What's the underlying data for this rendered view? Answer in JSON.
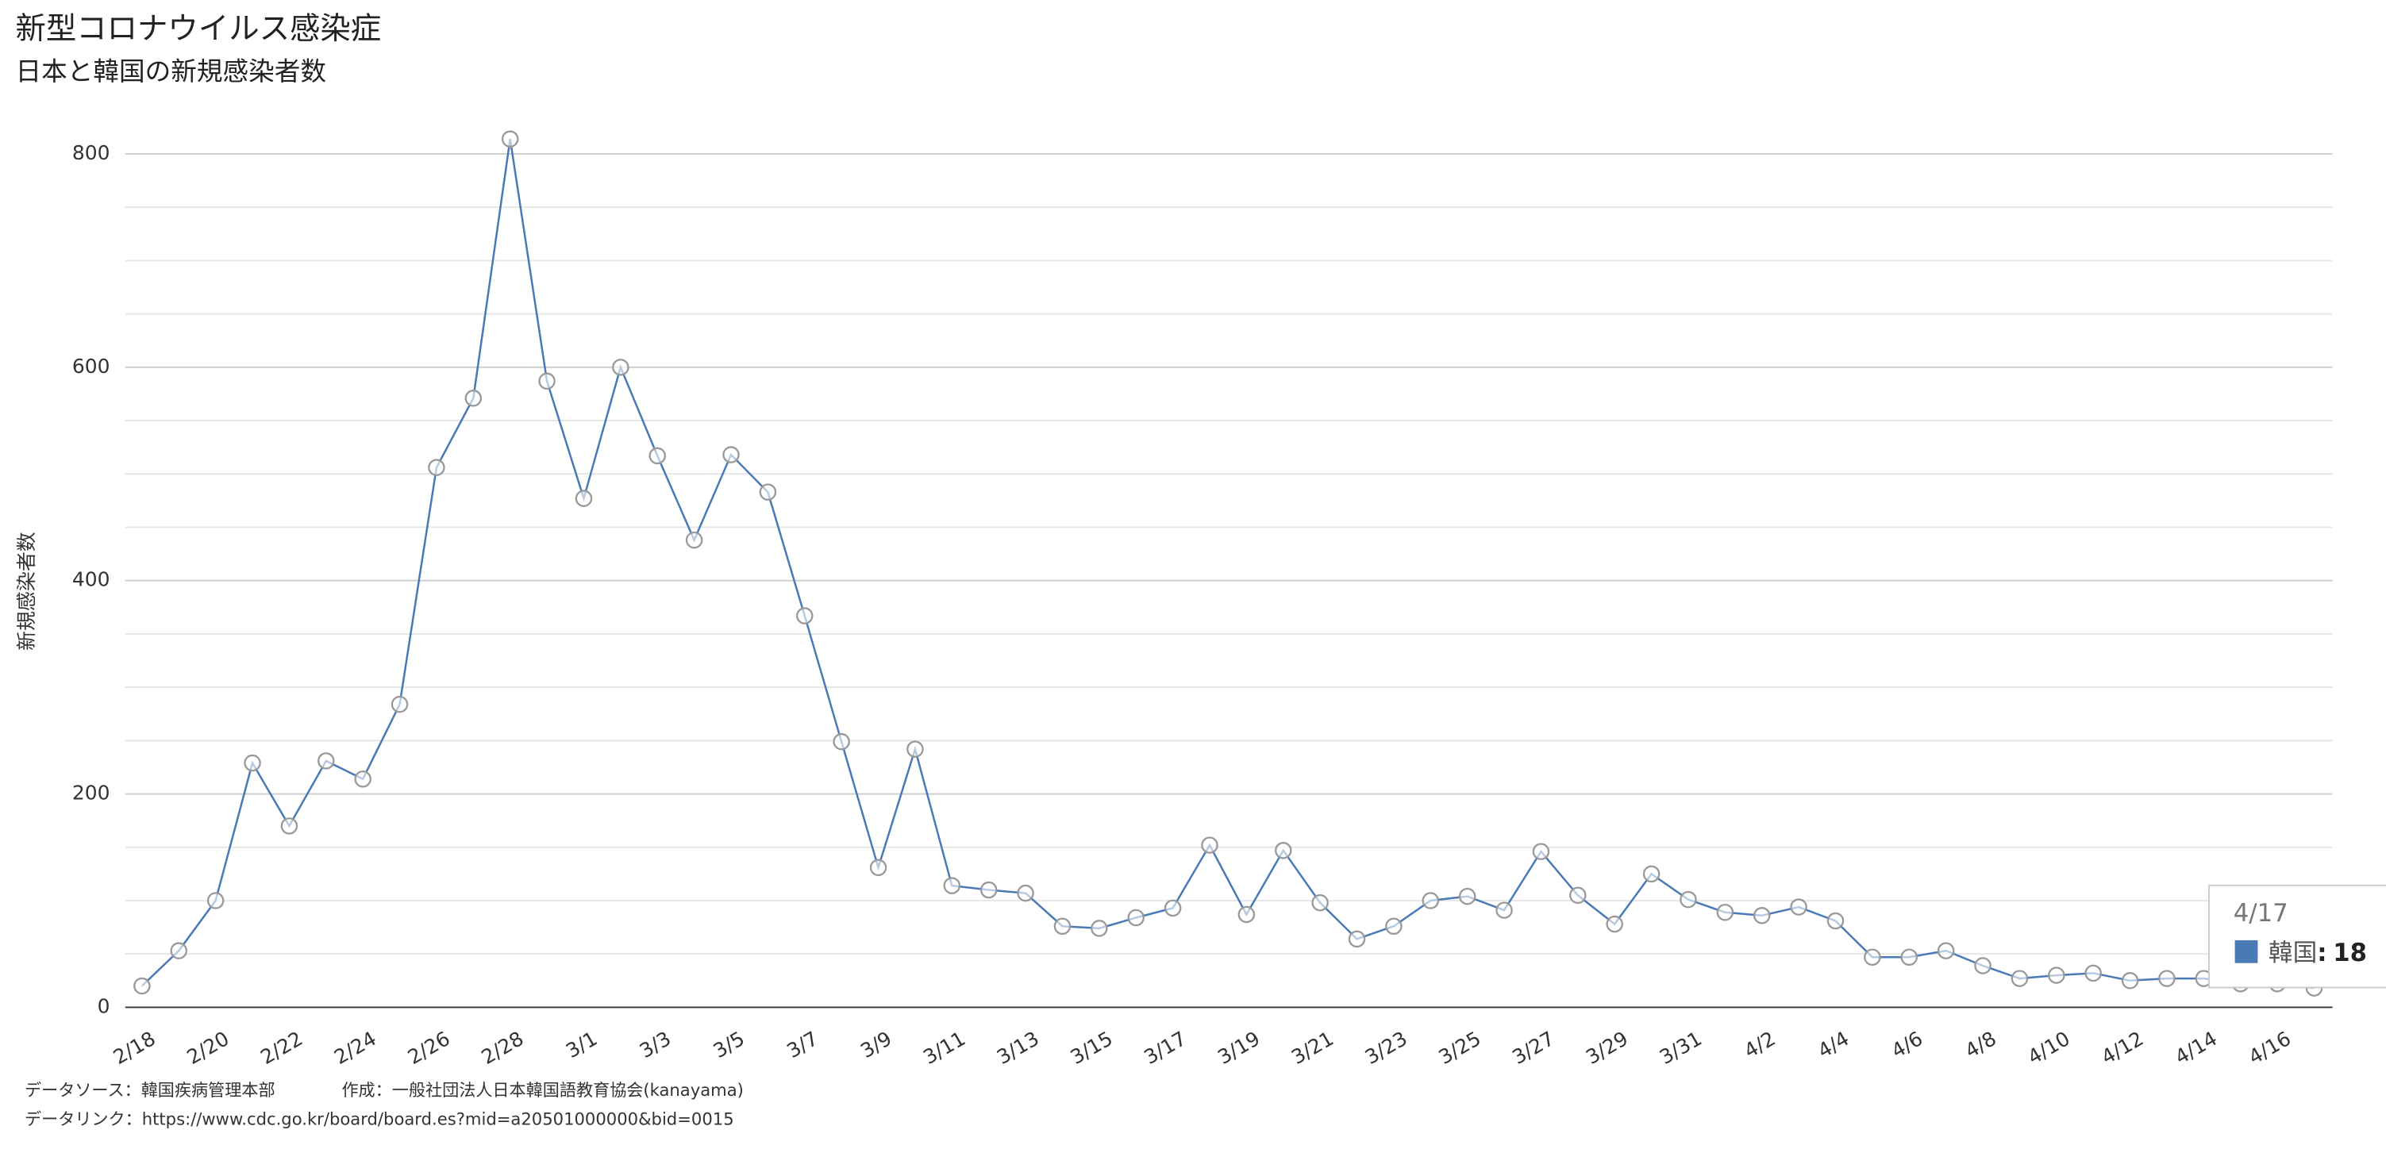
{
  "chart_data": {
    "type": "line",
    "title": "新型コロナウイルス感染症",
    "subtitle": "日本と韓国の新規感染者数",
    "y_label": "新規感染者数",
    "categories": [
      "2/18",
      null,
      "2/20",
      null,
      "2/22",
      null,
      "2/24",
      null,
      "2/26",
      null,
      "2/28",
      null,
      "3/1",
      null,
      "3/3",
      null,
      "3/5",
      null,
      "3/7",
      null,
      "3/9",
      null,
      "3/11",
      null,
      "3/13",
      null,
      "3/15",
      null,
      "3/17",
      null,
      "3/19",
      null,
      "3/21",
      null,
      "3/23",
      null,
      "3/25",
      null,
      "3/27",
      null,
      "3/29",
      null,
      "3/31",
      null,
      "4/2",
      null,
      "4/4",
      null,
      "4/6",
      null,
      "4/8",
      null,
      "4/10",
      null,
      "4/12",
      null,
      "4/14",
      null,
      "4/16",
      null
    ],
    "series": [
      {
        "name": "韓国",
        "color": "#4a7ab5",
        "values": [
          20,
          53,
          100,
          229,
          170,
          231,
          214,
          284,
          506,
          571,
          814,
          587,
          477,
          600,
          517,
          438,
          518,
          483,
          367,
          249,
          131,
          242,
          114,
          110,
          107,
          76,
          74,
          84,
          93,
          152,
          87,
          147,
          98,
          64,
          76,
          100,
          104,
          91,
          146,
          105,
          78,
          125,
          101,
          89,
          86,
          94,
          81,
          47,
          47,
          53,
          39,
          27,
          30,
          32,
          25,
          27,
          27,
          22,
          22,
          18
        ]
      }
    ],
    "ylim": [
      0,
      800
    ],
    "yticks": [
      0,
      200,
      400,
      600,
      800
    ],
    "minor_yticks": [
      50,
      100,
      150,
      250,
      300,
      350,
      450,
      500,
      550,
      650,
      700,
      750
    ],
    "grid": true,
    "tooltip": {
      "label": "4/17",
      "separator": ":"
    },
    "footer": {
      "source": "データソース：韓国疾病管理本部",
      "author": "作成：一般社団法人日本韓国語教育協会(kanayama)",
      "link": "データリンク：https://www.cdc.go.kr/board/board.es?mid=a20501000000&bid=0015"
    }
  }
}
